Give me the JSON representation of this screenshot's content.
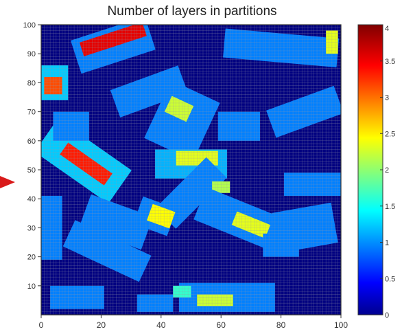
{
  "chart_data": {
    "type": "heatmap",
    "title": "Number of layers in partitions",
    "xlabel": "",
    "ylabel": "",
    "xlim": [
      0,
      100
    ],
    "ylim": [
      0,
      100
    ],
    "x_ticks": [
      "0",
      "20",
      "40",
      "60",
      "80",
      "100"
    ],
    "y_ticks": [
      "10",
      "20",
      "30",
      "40",
      "50",
      "60",
      "70",
      "80",
      "90",
      "100"
    ],
    "colorbar": {
      "range": [
        0,
        4
      ],
      "tick_values": [
        0,
        0.5,
        1,
        1.5,
        2,
        2.5,
        3,
        3.5,
        4
      ],
      "ticks": [
        "0",
        "0.5",
        "1",
        "1.5",
        "2",
        "2.5",
        "3",
        "3.5",
        "4"
      ],
      "colormap": "jet"
    },
    "grid": true,
    "background_value": 0,
    "partitions": [
      {
        "cx": 24,
        "cy": 93,
        "w": 26,
        "h": 12,
        "angle": 18,
        "value": 1
      },
      {
        "cx": 24,
        "cy": 95,
        "w": 22,
        "h": 5,
        "angle": 18,
        "value": 3.6
      },
      {
        "cx": 80,
        "cy": 92,
        "w": 38,
        "h": 10,
        "angle": -5,
        "value": 1
      },
      {
        "cx": 97,
        "cy": 94,
        "w": 4,
        "h": 8,
        "angle": 0,
        "value": 2.4
      },
      {
        "cx": 4,
        "cy": 80,
        "w": 10,
        "h": 12,
        "angle": 0,
        "value": 1.3
      },
      {
        "cx": 4,
        "cy": 79,
        "w": 6,
        "h": 6,
        "angle": 0,
        "value": 3.2
      },
      {
        "cx": 36,
        "cy": 77,
        "w": 24,
        "h": 10,
        "angle": 20,
        "value": 1
      },
      {
        "cx": 47,
        "cy": 67,
        "w": 18,
        "h": 22,
        "angle": -25,
        "value": 1
      },
      {
        "cx": 46,
        "cy": 71,
        "w": 8,
        "h": 6,
        "angle": -25,
        "value": 2.3
      },
      {
        "cx": 88,
        "cy": 70,
        "w": 24,
        "h": 10,
        "angle": 20,
        "value": 1
      },
      {
        "cx": 14,
        "cy": 53,
        "w": 30,
        "h": 14,
        "angle": -35,
        "value": 1.3
      },
      {
        "cx": 15,
        "cy": 52,
        "w": 18,
        "h": 5,
        "angle": -35,
        "value": 3.4
      },
      {
        "cx": 10,
        "cy": 65,
        "w": 12,
        "h": 10,
        "angle": 0,
        "value": 1
      },
      {
        "cx": 66,
        "cy": 65,
        "w": 14,
        "h": 10,
        "angle": 0,
        "value": 1
      },
      {
        "cx": 50,
        "cy": 52,
        "w": 24,
        "h": 10,
        "angle": 0,
        "value": 1.2
      },
      {
        "cx": 52,
        "cy": 54,
        "w": 14,
        "h": 5,
        "angle": 0,
        "value": 2.4
      },
      {
        "cx": 50,
        "cy": 42,
        "w": 24,
        "h": 10,
        "angle": 45,
        "value": 1
      },
      {
        "cx": 60,
        "cy": 44,
        "w": 6,
        "h": 4,
        "angle": 0,
        "value": 2.2
      },
      {
        "cx": 25,
        "cy": 32,
        "w": 22,
        "h": 12,
        "angle": -20,
        "value": 1
      },
      {
        "cx": 38,
        "cy": 34,
        "w": 12,
        "h": 10,
        "angle": -20,
        "value": 1
      },
      {
        "cx": 40,
        "cy": 34,
        "w": 8,
        "h": 6,
        "angle": -20,
        "value": 2.5
      },
      {
        "cx": 66,
        "cy": 33,
        "w": 28,
        "h": 12,
        "angle": -22,
        "value": 1
      },
      {
        "cx": 70,
        "cy": 31,
        "w": 12,
        "h": 5,
        "angle": -22,
        "value": 2.4
      },
      {
        "cx": 22,
        "cy": 22,
        "w": 28,
        "h": 10,
        "angle": -25,
        "value": 1
      },
      {
        "cx": 3,
        "cy": 30,
        "w": 8,
        "h": 22,
        "angle": 0,
        "value": 1
      },
      {
        "cx": 92,
        "cy": 45,
        "w": 22,
        "h": 8,
        "angle": 0,
        "value": 1
      },
      {
        "cx": 88,
        "cy": 30,
        "w": 20,
        "h": 14,
        "angle": 10,
        "value": 1
      },
      {
        "cx": 80,
        "cy": 24,
        "w": 12,
        "h": 8,
        "angle": 0,
        "value": 1
      },
      {
        "cx": 12,
        "cy": 6,
        "w": 18,
        "h": 8,
        "angle": 0,
        "value": 1
      },
      {
        "cx": 38,
        "cy": 4,
        "w": 12,
        "h": 6,
        "angle": 0,
        "value": 1
      },
      {
        "cx": 62,
        "cy": 6,
        "w": 32,
        "h": 10,
        "angle": 0,
        "value": 1
      },
      {
        "cx": 58,
        "cy": 5,
        "w": 12,
        "h": 4,
        "angle": 0,
        "value": 2.3
      },
      {
        "cx": 47,
        "cy": 8,
        "w": 6,
        "h": 4,
        "angle": 0,
        "value": 1.7
      }
    ]
  },
  "colors": {
    "background": "#00008f",
    "grid": "#9a9aa8",
    "arrow": "#d91a1a"
  }
}
